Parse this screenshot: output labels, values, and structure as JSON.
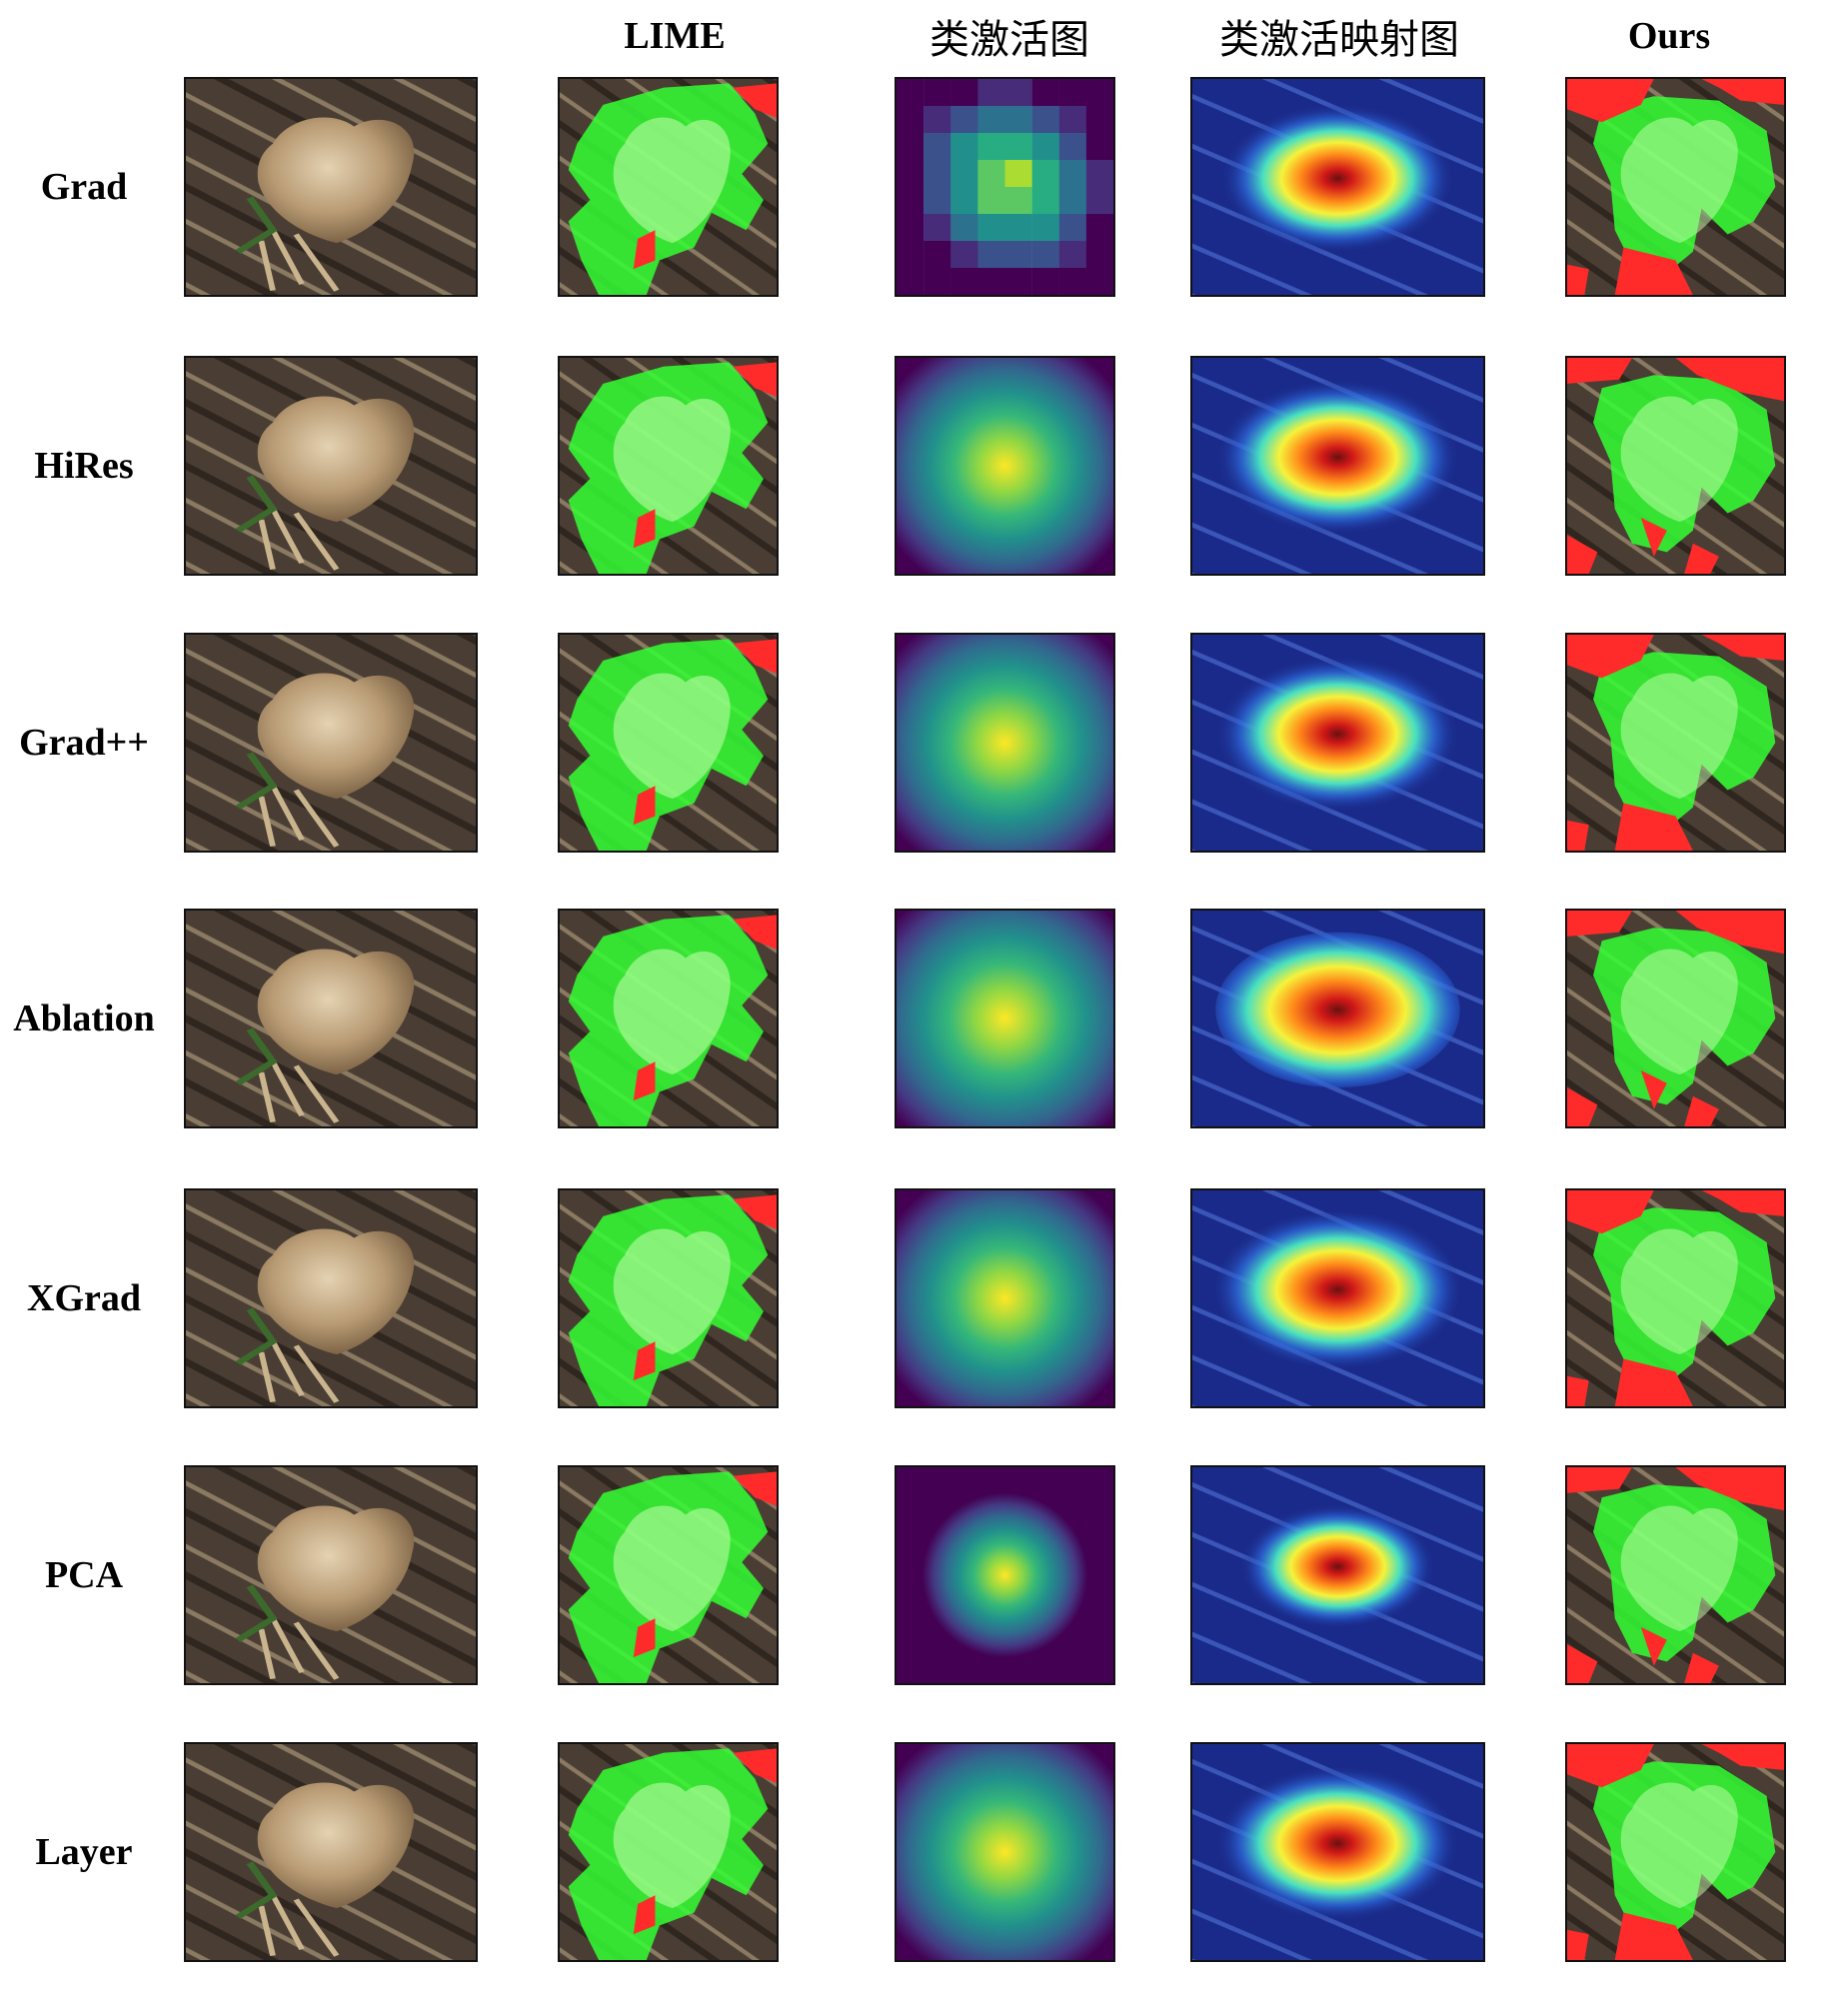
{
  "columns": [
    {
      "key": "original",
      "label": ""
    },
    {
      "key": "lime",
      "label": "LIME"
    },
    {
      "key": "class_activation",
      "label": "类激活图"
    },
    {
      "key": "class_activation_mapping",
      "label": "类激活映射图"
    },
    {
      "key": "ours",
      "label": "Ours"
    }
  ],
  "rows": [
    {
      "label": "Grad"
    },
    {
      "label": "HiRes"
    },
    {
      "label": "Grad++"
    },
    {
      "label": "Ablation"
    },
    {
      "label": "XGrad"
    },
    {
      "label": "PCA"
    },
    {
      "label": "Layer"
    }
  ],
  "colors": {
    "soil": "#4a3e34",
    "potato": "#b89b74",
    "lime_green": "#33ff33",
    "lime_red": "#ff2a2a",
    "viridis_low": "#440154",
    "viridis_high": "#fde725",
    "jet_low": "#1a2a8a",
    "jet_high": "#d01818"
  }
}
